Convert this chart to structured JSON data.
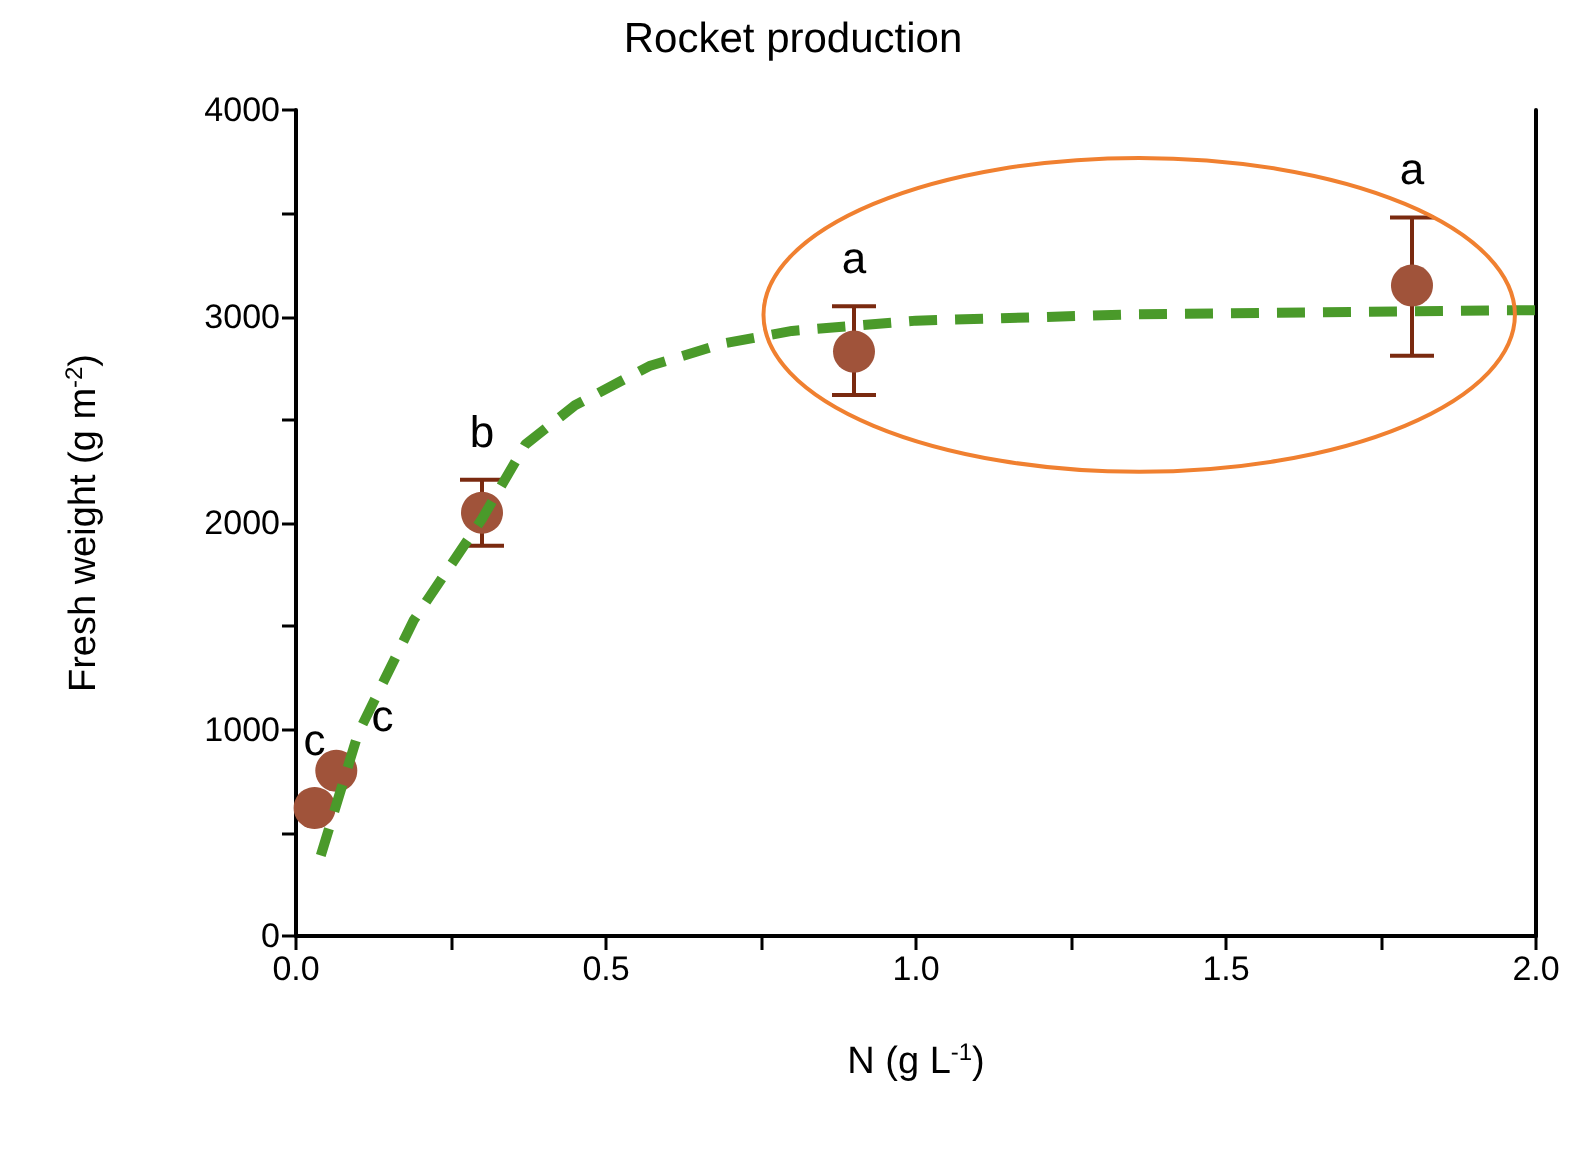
{
  "chart_data": {
    "type": "scatter",
    "title": "Rocket production",
    "xlabel": "N (g L$^{-1}$)",
    "ylabel": "Fresh weight (g m$^{-2}$)",
    "xlim": [
      0,
      2
    ],
    "xticks": [
      {
        "value": 0,
        "label": "0.0"
      },
      {
        "value": 0.25,
        "label": null
      },
      {
        "value": 0.5,
        "label": "0.5"
      },
      {
        "value": 0.75,
        "label": null
      },
      {
        "value": 1,
        "label": "1.0"
      },
      {
        "value": 1.25,
        "label": null
      },
      {
        "value": 1.5,
        "label": "1.5"
      },
      {
        "value": 1.75,
        "label": null
      },
      {
        "value": 2,
        "label": "2.0"
      }
    ],
    "ylim": [
      0,
      4000
    ],
    "yticks": [
      0,
      {
        "value": 500,
        "label": null
      },
      1000,
      {
        "value": 1500,
        "label": null
      },
      2000,
      {
        "value": 2500,
        "label": null
      },
      3000,
      {
        "value": 3500,
        "label": null
      },
      4000
    ],
    "grid": false,
    "series": [
      {
        "type": "scatter",
        "color": "#a0533a",
        "marker": "circle",
        "x": [
          0.03,
          0.065,
          0.3,
          0.9,
          1.8
        ],
        "values": [
          620,
          800,
          2050,
          2830,
          3150
        ],
        "errors": [
          null,
          null,
          [
            1890,
            2210
          ],
          [
            2620,
            3050
          ],
          [
            2810,
            3480
          ]
        ]
      },
      {
        "type": "line",
        "color": "#4a9a2a",
        "line_style": "dashed",
        "marker": "none",
        "x": [
          0.04,
          0.1,
          0.19,
          0.3,
          0.37,
          0.45,
          0.57,
          0.69,
          0.8,
          1.0,
          1.35,
          1.95,
          2.0
        ],
        "values": [
          390,
          980,
          1530,
          2020,
          2380,
          2570,
          2760,
          2870,
          2930,
          2980,
          3010,
          3030,
          3030
        ]
      }
    ],
    "annotations": [
      "c",
      "c",
      "b",
      "a",
      "a"
    ]
  }
}
